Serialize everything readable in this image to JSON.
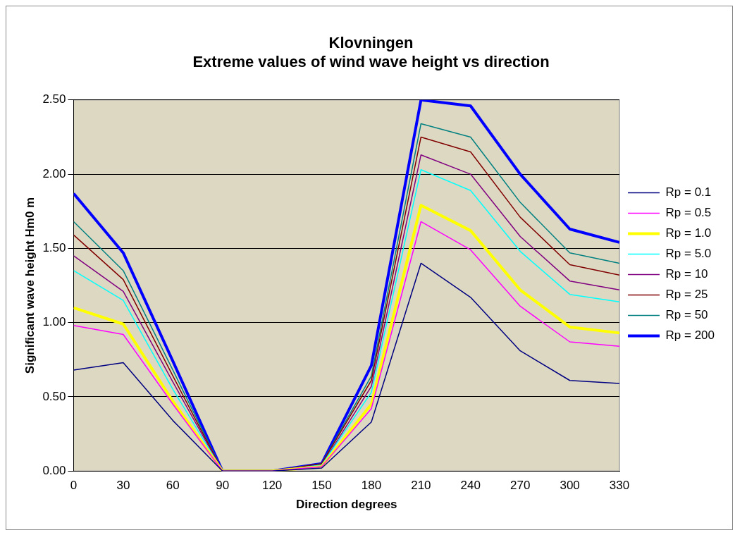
{
  "chart_data": {
    "type": "line",
    "title": [
      "Klovningen",
      "Extreme values of wind wave height vs direction"
    ],
    "xlabel": "Direction degrees",
    "ylabel": "Significant wave height Hm0 m",
    "x": [
      0,
      30,
      60,
      90,
      120,
      150,
      180,
      210,
      240,
      270,
      300,
      330
    ],
    "xlim": [
      0,
      330
    ],
    "xticks": [
      0,
      30,
      60,
      90,
      120,
      150,
      180,
      210,
      240,
      270,
      300,
      330
    ],
    "ylim": [
      0,
      2.5
    ],
    "yticks": [
      {
        "value": 0,
        "label": "0.00"
      },
      {
        "value": 0.5,
        "label": "0.50"
      },
      {
        "value": 1,
        "label": "1.00"
      },
      {
        "value": 1.5,
        "label": "1.50"
      },
      {
        "value": 2,
        "label": "2.00"
      },
      {
        "value": 2.5,
        "label": "2.50"
      }
    ],
    "grid": "y",
    "legend": "right",
    "marker": "none",
    "line_style": "solid",
    "series": [
      {
        "name": "Rp = 0.1",
        "color": "#000080",
        "values": [
          0.68,
          0.73,
          0.34,
          0,
          0,
          0.02,
          0.33,
          1.4,
          1.17,
          0.81,
          0.61,
          0.59
        ]
      },
      {
        "name": "Rp = 0.5",
        "color": "#ff00ff",
        "values": [
          0.98,
          0.92,
          0.45,
          0,
          0,
          0.03,
          0.42,
          1.68,
          1.49,
          1.11,
          0.87,
          0.84
        ]
      },
      {
        "name": "Rp = 1.0",
        "color": "#ffff00",
        "values": [
          1.1,
          0.99,
          0.47,
          0,
          0,
          0.03,
          0.45,
          1.79,
          1.62,
          1.22,
          0.97,
          0.93
        ]
      },
      {
        "name": "Rp = 5.0",
        "color": "#00ffff",
        "values": [
          1.35,
          1.15,
          0.55,
          0,
          0,
          0.04,
          0.53,
          2.03,
          1.89,
          1.48,
          1.19,
          1.14
        ]
      },
      {
        "name": "Rp = 10",
        "color": "#800080",
        "values": [
          1.45,
          1.21,
          0.6,
          0,
          0,
          0.04,
          0.57,
          2.13,
          2.0,
          1.58,
          1.28,
          1.22
        ]
      },
      {
        "name": "Rp = 25",
        "color": "#800000",
        "values": [
          1.59,
          1.29,
          0.64,
          0,
          0,
          0.05,
          0.61,
          2.25,
          2.15,
          1.71,
          1.39,
          1.32
        ]
      },
      {
        "name": "Rp = 50",
        "color": "#008080",
        "values": [
          1.68,
          1.35,
          0.68,
          0,
          0,
          0.05,
          0.64,
          2.34,
          2.25,
          1.81,
          1.47,
          1.4
        ]
      },
      {
        "name": "Rp = 200",
        "color": "#0000ff",
        "values": [
          1.87,
          1.47,
          0.74,
          0,
          0,
          0.05,
          0.71,
          2.5,
          2.46,
          2.0,
          1.63,
          1.54
        ]
      }
    ]
  }
}
